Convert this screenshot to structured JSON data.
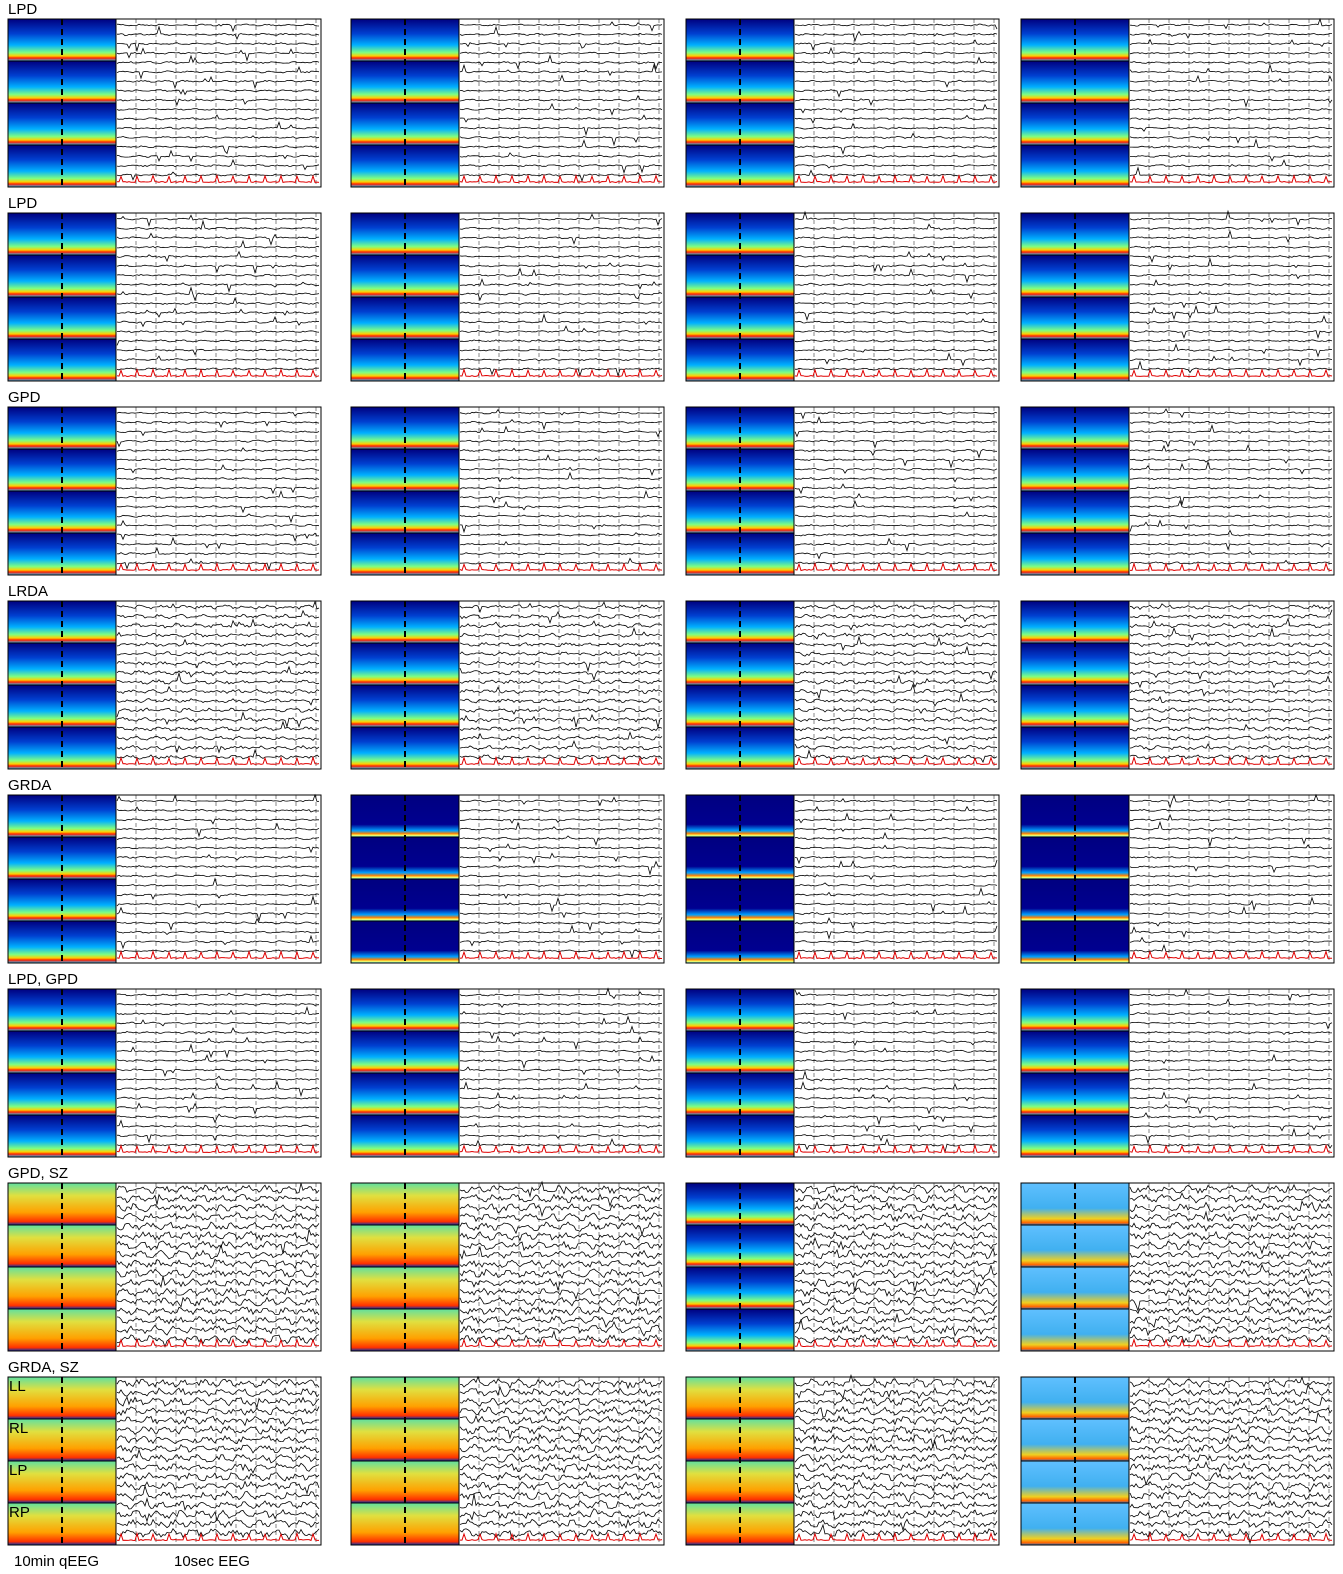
{
  "row_labels": [
    "LPD",
    "LPD",
    "GPD",
    "LRDA",
    "GRDA",
    "LPD, GPD",
    "GPD, SZ",
    "GRDA, SZ"
  ],
  "channel_labels": [
    "LL",
    "RL",
    "LP",
    "RP"
  ],
  "footer": {
    "qeeg": "10min qEEG",
    "eeg": "10sec EEG"
  }
}
